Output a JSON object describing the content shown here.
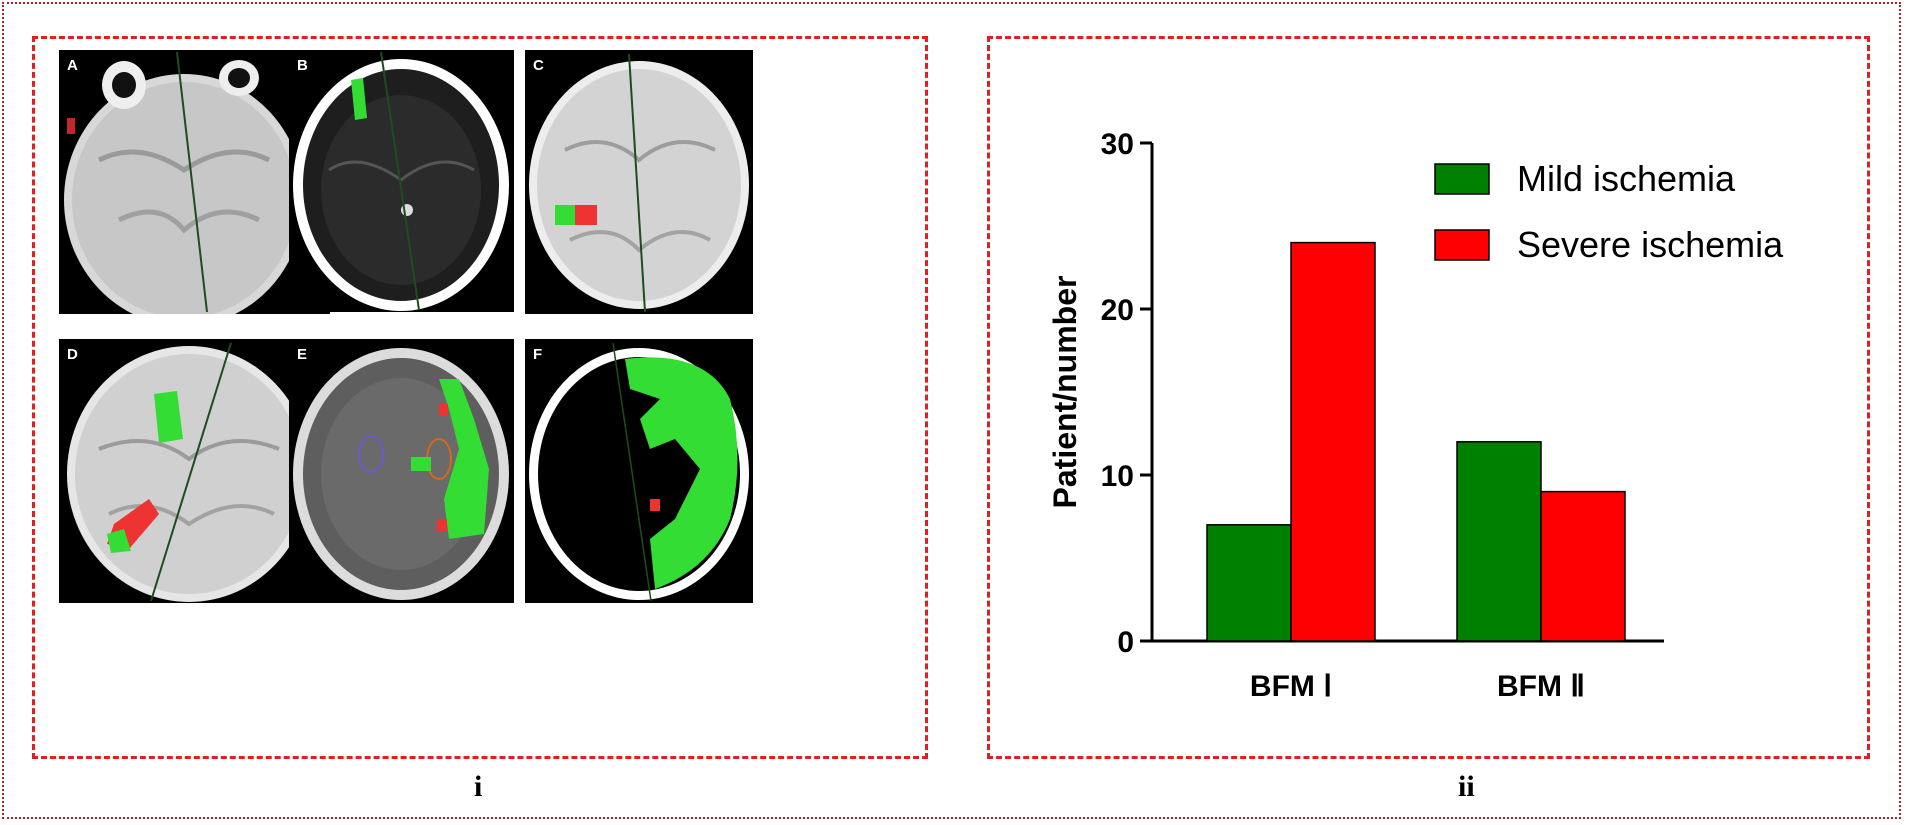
{
  "panel_i": {
    "label": "i",
    "tiles": [
      {
        "letter": "A"
      },
      {
        "letter": "B"
      },
      {
        "letter": "C"
      },
      {
        "letter": "D"
      },
      {
        "letter": "E"
      },
      {
        "letter": "F"
      }
    ]
  },
  "panel_ii": {
    "label": "ii"
  },
  "colors": {
    "mild": "#008000",
    "severe": "#ff0000",
    "frame": "#e02020",
    "highlight": "#33ee33"
  },
  "chart_data": {
    "type": "bar",
    "categories": [
      "BFM Ⅰ",
      "BFM Ⅱ"
    ],
    "series": [
      {
        "name": "Mild ischemia",
        "values": [
          7,
          12
        ],
        "color": "#008000"
      },
      {
        "name": "Severe ischemia",
        "values": [
          24,
          9
        ],
        "color": "#ff0000"
      }
    ],
    "title": "",
    "xlabel": "",
    "ylabel": "Patient/number",
    "ylim": [
      0,
      30
    ],
    "yticks": [
      "0",
      "10",
      "20",
      "30"
    ],
    "grid": false,
    "legend_position": "top-right"
  }
}
